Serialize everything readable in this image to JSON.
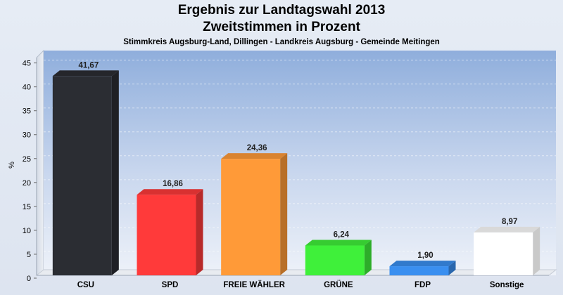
{
  "chart_data": {
    "type": "bar",
    "title": "Ergebnis zur Landtagswahl 2013",
    "subtitle": "Zweitstimmen in Prozent",
    "subsubtitle": "Stimmkreis Augsburg-Land, Dillingen - Landkreis Augsburg - Gemeinde Meitingen",
    "ylabel": "%",
    "xlabel": "",
    "ylim": [
      0,
      47
    ],
    "yticks": [
      0,
      5,
      10,
      15,
      20,
      25,
      30,
      35,
      40,
      45
    ],
    "categories": [
      "CSU",
      "SPD",
      "FREIE WÄHLER",
      "GRÜNE",
      "FDP",
      "Sonstige"
    ],
    "values": [
      41.67,
      16.86,
      24.36,
      6.24,
      1.9,
      8.97
    ],
    "value_labels": [
      "41,67",
      "16,86",
      "24,36",
      "6,24",
      "1,90",
      "8,97"
    ],
    "colors": [
      "#2b2d33",
      "#ff3a3a",
      "#ff9a38",
      "#3ff03a",
      "#3a8ff0",
      "#ffffff"
    ],
    "grid": true,
    "legend": "none"
  }
}
